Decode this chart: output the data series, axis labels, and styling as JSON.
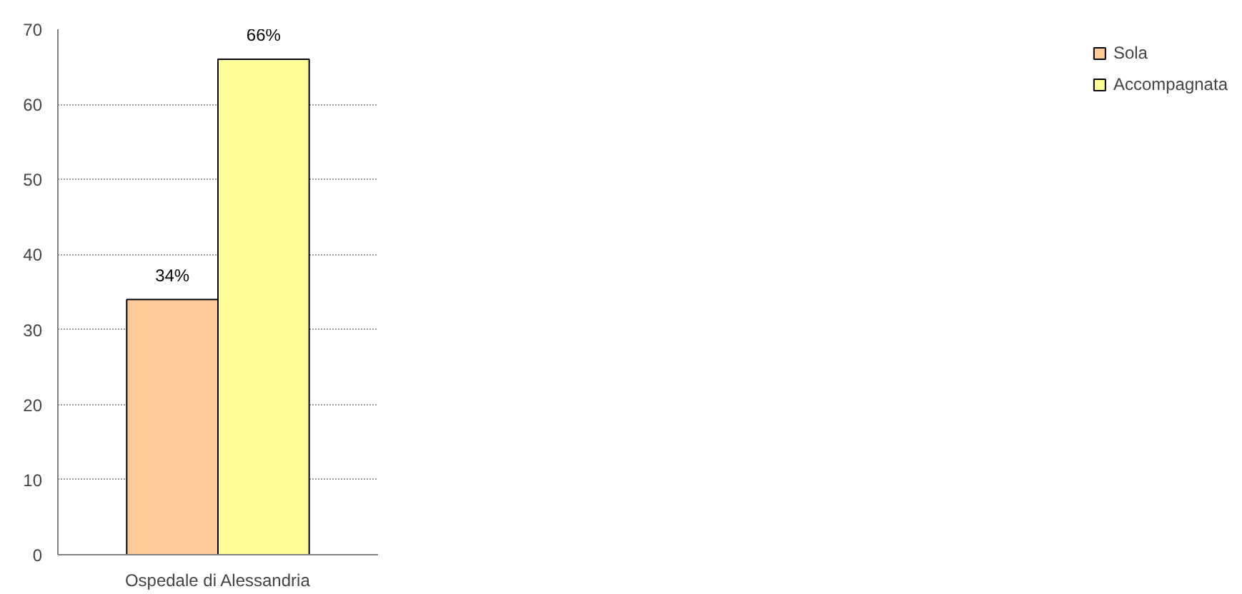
{
  "chart_data": {
    "type": "bar",
    "categories": [
      "Ospedale di Alessandria"
    ],
    "series": [
      {
        "name": "Sola",
        "color": "#ffcc99",
        "values": [
          34
        ],
        "value_labels": [
          "34%"
        ]
      },
      {
        "name": "Accompagnata",
        "color": "#ffff99",
        "values": [
          66
        ],
        "value_labels": [
          "66%"
        ]
      }
    ],
    "ylim": [
      0,
      70
    ],
    "yticks": [
      0,
      10,
      20,
      30,
      40,
      50,
      60,
      70
    ],
    "grid": "y",
    "legend": "right"
  }
}
